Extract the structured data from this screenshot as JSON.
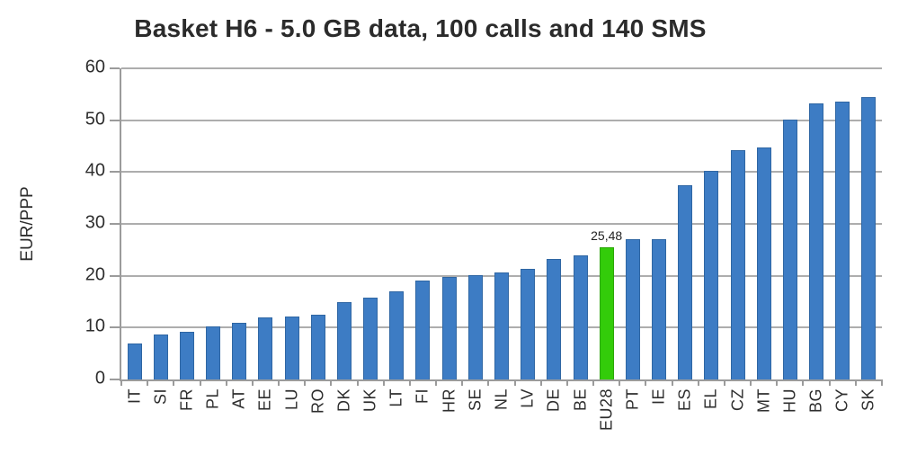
{
  "chart_data": {
    "type": "bar",
    "title": "Basket H6 - 5.0 GB data, 100 calls and 140 SMS",
    "ylabel": "EUR/PPP",
    "xlabel": "",
    "ylim": [
      0,
      60
    ],
    "yticks": [
      0,
      10,
      20,
      30,
      40,
      50,
      60
    ],
    "grid": "horizontal",
    "legend": "none",
    "categories": [
      "IT",
      "SI",
      "FR",
      "PL",
      "AT",
      "EE",
      "LU",
      "RO",
      "DK",
      "UK",
      "LT",
      "FI",
      "HR",
      "SE",
      "NL",
      "LV",
      "DE",
      "BE",
      "EU28",
      "PT",
      "IE",
      "ES",
      "EL",
      "CZ",
      "MT",
      "HU",
      "BG",
      "CY",
      "SK"
    ],
    "values": [
      7.0,
      8.6,
      9.2,
      10.2,
      11.0,
      11.9,
      12.2,
      12.5,
      14.9,
      15.7,
      17.0,
      19.1,
      19.8,
      20.2,
      20.6,
      21.4,
      23.2,
      23.9,
      25.48,
      27.0,
      27.1,
      37.5,
      40.2,
      44.2,
      44.8,
      50.1,
      53.3,
      53.6,
      54.5
    ],
    "highlight": {
      "category": "EU28",
      "value": 25.48,
      "value_label": "25,48"
    },
    "colors": {
      "bar_fill": "#3D7CC4",
      "bar_border": "#2F66A3",
      "highlight_fill": "#33CC0A",
      "highlight_border": "#2BA606",
      "gridline": "#ADADAD",
      "axis": "#9B9B9B",
      "text": "#2E2E2E"
    }
  }
}
